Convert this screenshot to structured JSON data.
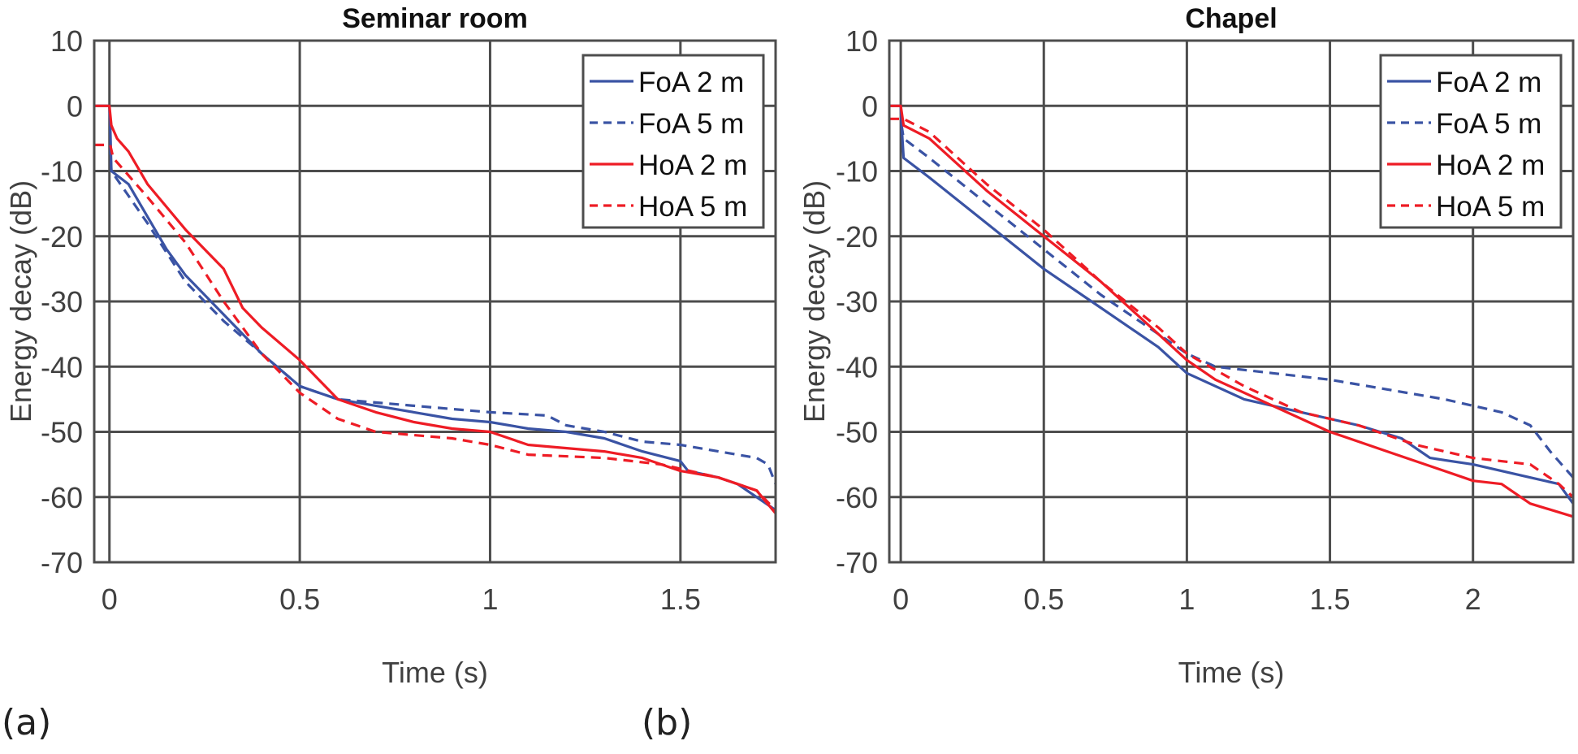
{
  "chart_data": [
    {
      "type": "line",
      "panel_label": "(a)",
      "title": "Seminar room",
      "xlabel": "Time (s)",
      "ylabel": "Energy decay (dB)",
      "xlim": [
        -0.04,
        1.75
      ],
      "ylim": [
        -70,
        10
      ],
      "xticks": [
        0,
        0.5,
        1,
        1.5
      ],
      "xtick_labels": [
        "0",
        "0.5",
        "1",
        "1.5"
      ],
      "yticks": [
        10,
        0,
        -10,
        -20,
        -30,
        -40,
        -50,
        -60,
        -70
      ],
      "ytick_labels": [
        "10",
        "0",
        "-10",
        "-20",
        "-30",
        "-40",
        "-50",
        "-60",
        "-70"
      ],
      "grid": true,
      "legend_position": "top-right",
      "series": [
        {
          "name": "FoA 2 m",
          "color": "#3a53a4",
          "dash": false,
          "x": [
            -0.04,
            0,
            0.002,
            0.005,
            0.05,
            0.1,
            0.15,
            0.2,
            0.3,
            0.4,
            0.5,
            0.6,
            0.7,
            0.8,
            0.9,
            1.0,
            1.1,
            1.2,
            1.3,
            1.4,
            1.5,
            1.52,
            1.6,
            1.65,
            1.7,
            1.75
          ],
          "y": [
            0,
            0,
            -3,
            -10,
            -12,
            -17,
            -22,
            -26,
            -32,
            -38,
            -43,
            -45,
            -46,
            -47,
            -48,
            -48.5,
            -49.5,
            -50,
            -51,
            -53,
            -54.5,
            -56,
            -57,
            -58,
            -60,
            -62
          ]
        },
        {
          "name": "FoA 5 m",
          "color": "#3a53a4",
          "dash": true,
          "x": [
            0.002,
            0.005,
            0.1,
            0.2,
            0.3,
            0.4,
            0.5,
            0.6,
            0.8,
            1.0,
            1.15,
            1.2,
            1.3,
            1.4,
            1.5,
            1.6,
            1.7,
            1.73,
            1.75
          ],
          "y": [
            -6,
            -10,
            -18,
            -27,
            -33,
            -38,
            -43,
            -45,
            -46,
            -47,
            -47.5,
            -49,
            -50,
            -51.5,
            -52,
            -53,
            -54,
            -55,
            -58
          ]
        },
        {
          "name": "HoA 2 m",
          "color": "#ee1c25",
          "dash": false,
          "x": [
            -0.04,
            0,
            0.005,
            0.02,
            0.05,
            0.1,
            0.2,
            0.3,
            0.35,
            0.4,
            0.5,
            0.6,
            0.7,
            0.8,
            0.9,
            1.0,
            1.1,
            1.3,
            1.4,
            1.5,
            1.6,
            1.7,
            1.75
          ],
          "y": [
            0,
            0,
            -3,
            -5,
            -7,
            -12,
            -19,
            -25,
            -31,
            -34,
            -39,
            -45,
            -47,
            -48.5,
            -49.5,
            -50,
            -52,
            -53,
            -54,
            -56,
            -57,
            -59,
            -62.5
          ]
        },
        {
          "name": "HoA 5 m",
          "color": "#ee1c25",
          "dash": true,
          "x": [
            -0.04,
            0.002,
            0.01,
            0.1,
            0.2,
            0.3,
            0.4,
            0.5,
            0.6,
            0.7,
            0.9,
            1.0,
            1.1,
            1.3,
            1.45,
            1.6,
            1.7,
            1.75
          ],
          "y": [
            -6,
            -6,
            -8,
            -14,
            -21,
            -30,
            -38,
            -44,
            -48,
            -50,
            -51,
            -52,
            -53.5,
            -54,
            -55,
            -57,
            -59,
            -62
          ]
        }
      ]
    },
    {
      "type": "line",
      "panel_label": "(b)",
      "title": "Chapel",
      "xlabel": "Time (s)",
      "ylabel": "Energy decay (dB)",
      "xlim": [
        -0.04,
        2.35
      ],
      "ylim": [
        -70,
        10
      ],
      "xticks": [
        0,
        0.5,
        1,
        1.5,
        2
      ],
      "xtick_labels": [
        "0",
        "0.5",
        "1",
        "1.5",
        "2"
      ],
      "yticks": [
        10,
        0,
        -10,
        -20,
        -30,
        -40,
        -50,
        -60,
        -70
      ],
      "ytick_labels": [
        "10",
        "0",
        "-10",
        "-20",
        "-30",
        "-40",
        "-50",
        "-60",
        "-70"
      ],
      "grid": true,
      "legend_position": "top-right",
      "series": [
        {
          "name": "FoA 2 m",
          "color": "#3a53a4",
          "dash": false,
          "x": [
            -0.04,
            0,
            0.003,
            0.01,
            0.1,
            0.3,
            0.5,
            0.7,
            0.9,
            1.0,
            1.2,
            1.4,
            1.5,
            1.6,
            1.75,
            1.85,
            2.0,
            2.2,
            2.3,
            2.35
          ],
          "y": [
            0,
            0,
            -3,
            -8,
            -11,
            -18,
            -25,
            -31,
            -37,
            -41,
            -45,
            -47,
            -48,
            -49,
            -51,
            -54,
            -55,
            -57,
            -58,
            -61
          ]
        },
        {
          "name": "FoA 5 m",
          "color": "#3a53a4",
          "dash": true,
          "x": [
            0.003,
            0.01,
            0.1,
            0.3,
            0.5,
            0.7,
            0.9,
            1.0,
            1.1,
            1.3,
            1.5,
            1.7,
            1.9,
            2.0,
            2.1,
            2.2,
            2.27,
            2.35
          ],
          "y": [
            -3,
            -5,
            -8,
            -15,
            -22,
            -29,
            -35,
            -38,
            -40,
            -41,
            -42,
            -43.5,
            -45,
            -46,
            -47,
            -49,
            -53,
            -57
          ]
        },
        {
          "name": "HoA 2 m",
          "color": "#ee1c25",
          "dash": false,
          "x": [
            -0.04,
            0,
            0.01,
            0.1,
            0.3,
            0.5,
            0.7,
            0.9,
            1.0,
            1.1,
            1.3,
            1.5,
            1.7,
            1.9,
            2.0,
            2.1,
            2.2,
            2.35
          ],
          "y": [
            0,
            0,
            -3,
            -5,
            -13,
            -20,
            -27,
            -35,
            -39,
            -42,
            -46,
            -50,
            -53,
            -56,
            -57.5,
            -58,
            -61,
            -63
          ]
        },
        {
          "name": "HoA 5 m",
          "color": "#ee1c25",
          "dash": true,
          "x": [
            -0.04,
            0.01,
            0.1,
            0.3,
            0.5,
            0.7,
            0.9,
            1.0,
            1.2,
            1.4,
            1.6,
            1.8,
            2.0,
            2.2,
            2.3,
            2.35
          ],
          "y": [
            -2,
            -2,
            -4,
            -12,
            -19,
            -27,
            -34,
            -38,
            -43,
            -47,
            -49,
            -52,
            -54,
            -55,
            -58,
            -60
          ]
        }
      ]
    }
  ]
}
